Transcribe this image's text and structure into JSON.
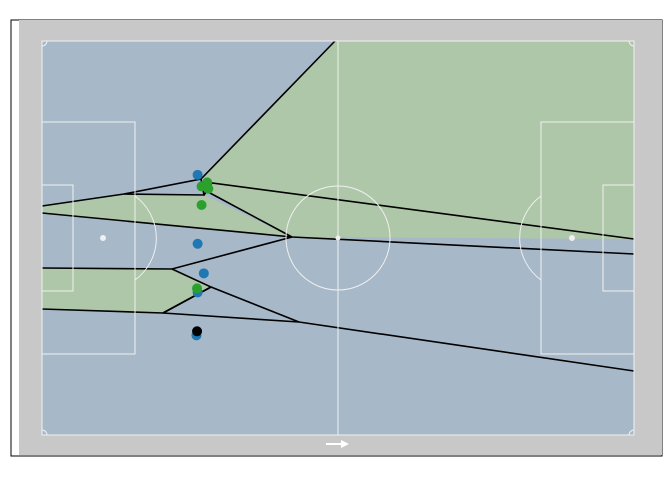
{
  "figure": {
    "description_hidden": "",
    "pitch_surround_color": "#c8c8c8",
    "frame_border_color": "#000000",
    "direction_arrow_icon": "right-arrow-icon"
  },
  "colors": {
    "team_a_region": "#a7b8c8",
    "team_b_region": "#aec7a9",
    "boundary": "#000000",
    "pitch_lines": "#f0f0f0",
    "team_a_player": "#1f77b4",
    "team_b_player": "#2ca02c",
    "ball": "#000000"
  },
  "pitch": {
    "length_m": 105,
    "width_m": 68
  },
  "players": {
    "team_a": [
      {
        "x": 27.6,
        "y": 23.1
      },
      {
        "x": 27.6,
        "y": 35.0
      },
      {
        "x": 28.7,
        "y": 40.1
      },
      {
        "x": 27.6,
        "y": 43.4
      },
      {
        "x": 27.4,
        "y": 50.8
      }
    ],
    "team_b": [
      {
        "x": 29.3,
        "y": 24.4
      },
      {
        "x": 28.3,
        "y": 25.1
      },
      {
        "x": 29.5,
        "y": 25.5
      },
      {
        "x": 28.3,
        "y": 28.3
      },
      {
        "x": 27.5,
        "y": 42.7
      }
    ],
    "ball": {
      "x": 27.5,
      "y": 50.1
    }
  }
}
